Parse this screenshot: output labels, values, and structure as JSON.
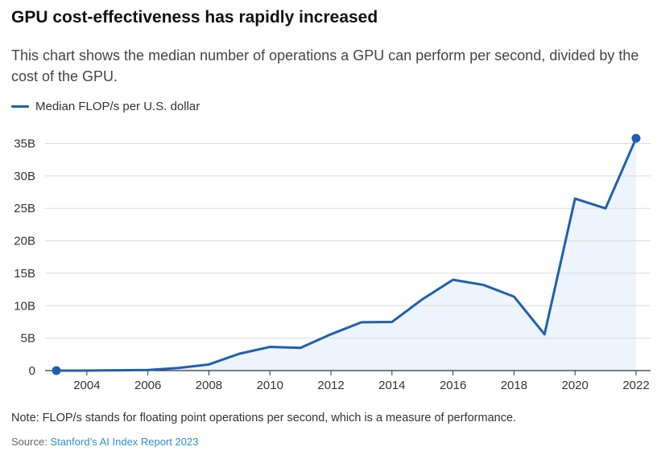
{
  "title": "GPU cost-effectiveness has rapidly increased",
  "subtitle": "This chart shows the median number of operations a GPU can perform per second, divided by the cost of the GPU.",
  "legend": {
    "label": "Median FLOP/s per U.S. dollar"
  },
  "note": "Note: FLOP/s stands for floating point operations per second, which is a measure of performance.",
  "source": {
    "prefix": "Source: ",
    "link_text": "Stanford’s AI Index Report 2023"
  },
  "colors": {
    "line": "#1f5fb0",
    "area": "#eef4fc",
    "grid": "#dcdcdc",
    "axis": "#333333",
    "link": "#2e8fc9"
  },
  "chart_data": {
    "type": "area",
    "title": "GPU cost-effectiveness has rapidly increased",
    "xlabel": "",
    "ylabel": "",
    "xlim": [
      2003,
      2022
    ],
    "ylim": [
      0,
      35
    ],
    "y_unit": "B",
    "x_ticks": [
      2004,
      2006,
      2008,
      2010,
      2012,
      2014,
      2016,
      2018,
      2020,
      2022
    ],
    "y_ticks": [
      0,
      5,
      10,
      15,
      20,
      25,
      30,
      35
    ],
    "y_tick_labels": [
      "0",
      "5B",
      "10B",
      "15B",
      "20B",
      "25B",
      "30B",
      "35B"
    ],
    "series": [
      {
        "name": "Median FLOP/s per U.S. dollar",
        "x": [
          2003,
          2004,
          2005,
          2006,
          2007,
          2008,
          2009,
          2010,
          2011,
          2012,
          2013,
          2014,
          2015,
          2016,
          2017,
          2018,
          2019,
          2020,
          2021,
          2022
        ],
        "y": [
          0,
          0,
          0.05,
          0.1,
          0.4,
          0.95,
          2.6,
          3.65,
          3.5,
          5.6,
          7.45,
          7.5,
          11,
          14,
          13.2,
          11.4,
          5.6,
          26.5,
          25,
          35.8
        ],
        "highlight_points": [
          2003,
          2022
        ]
      }
    ]
  }
}
